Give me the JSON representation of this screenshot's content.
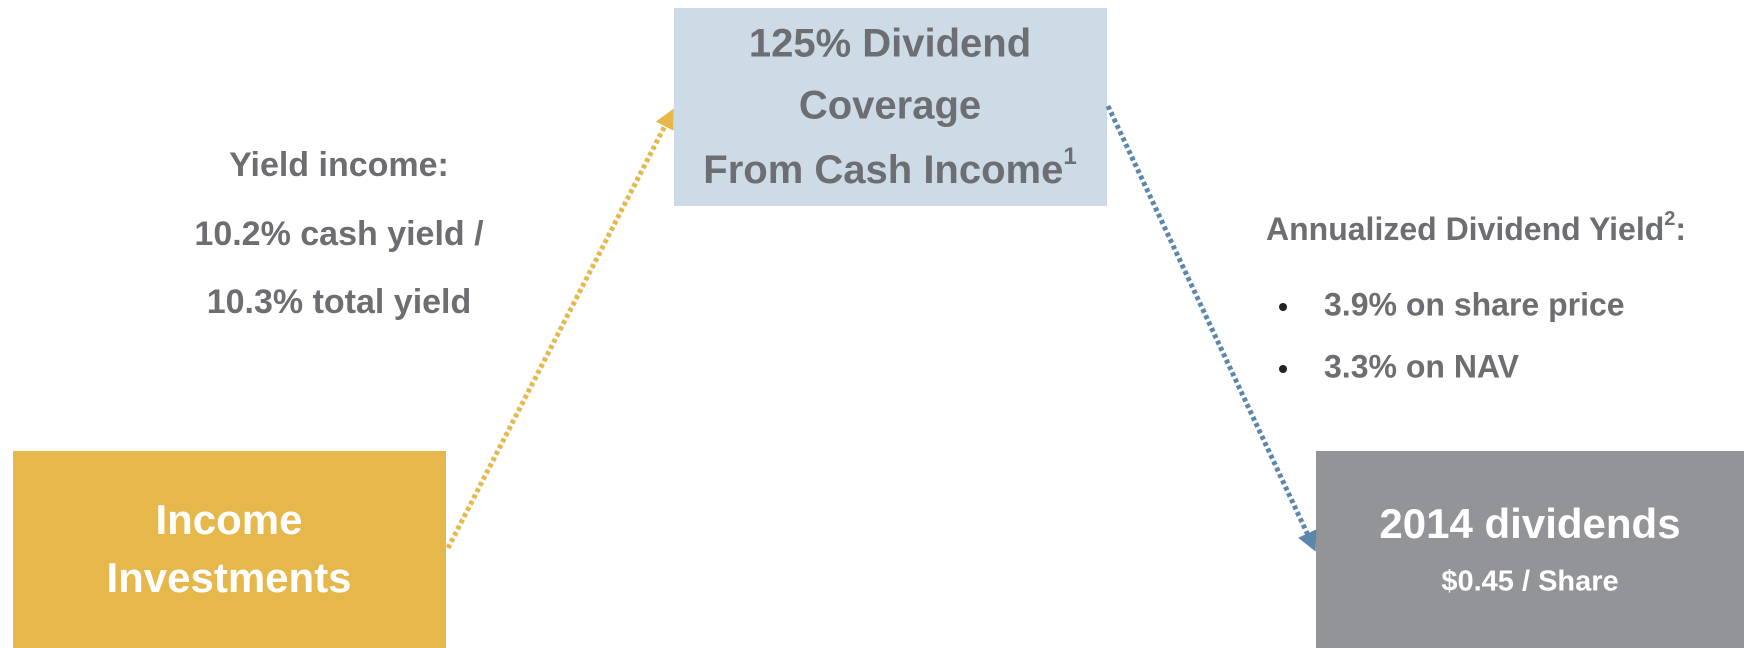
{
  "nodes": [
    {
      "label": [
        "Income",
        "Investments"
      ]
    },
    {
      "label": [
        "125% Dividend",
        "Coverage",
        "From Cash Income"
      ],
      "superscript": "1"
    },
    {
      "label": [
        "2014 dividends"
      ],
      "sublabel": "$0.45 / Share"
    }
  ],
  "left_note": [
    "Yield income:",
    "10.2% cash yield /",
    "10.3% total yield"
  ],
  "right_note": {
    "heading": "Annualized Dividend Yield",
    "superscript": "2",
    "suffix": ":",
    "bullets": [
      "3.9% on share price",
      "3.3% on NAV"
    ]
  }
}
